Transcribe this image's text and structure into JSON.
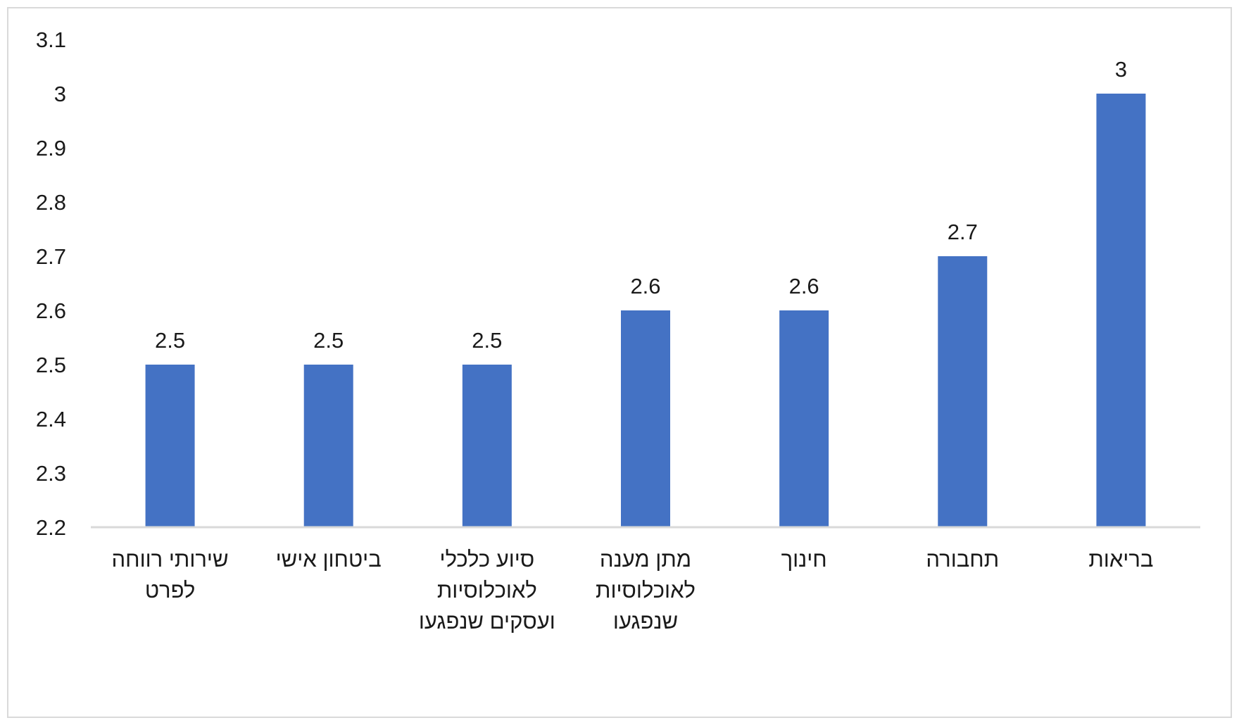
{
  "chart_data": {
    "type": "bar",
    "title": "",
    "xlabel": "",
    "ylabel": "",
    "categories": [
      [
        "שירותי רווחה",
        "לפרט"
      ],
      [
        "ביטחון אישי"
      ],
      [
        "סיוע כלכלי",
        "לאוכלוסיות",
        "ועסקים שנפגעו"
      ],
      [
        "מתן מענה",
        "לאוכלוסיות",
        "שנפגעו"
      ],
      [
        "חינוך"
      ],
      [
        "תחבורה"
      ],
      [
        "בריאות"
      ]
    ],
    "values": [
      2.5,
      2.5,
      2.5,
      2.6,
      2.6,
      2.7,
      3
    ],
    "data_labels": [
      "2.5",
      "2.5",
      "2.5",
      "2.6",
      "2.6",
      "2.7",
      "3"
    ],
    "ylim": [
      2.2,
      3.1
    ],
    "yticks": [
      "2.2",
      "2.3",
      "2.4",
      "2.5",
      "2.6",
      "2.7",
      "2.8",
      "2.9",
      "3",
      "3.1"
    ],
    "grid": false,
    "legend": "none",
    "colors": {
      "bar": "#4472c4",
      "axis": "#d9d9d9",
      "text": "#1a1a1a",
      "frame": "#d9d9d9"
    }
  }
}
